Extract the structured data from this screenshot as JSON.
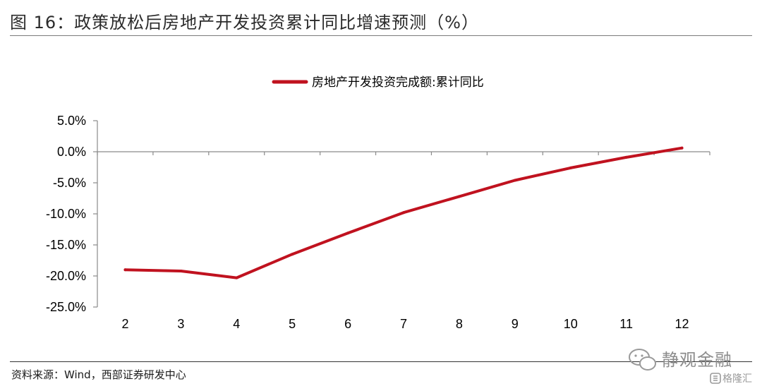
{
  "header": {
    "title": "图 16：政策放松后房地产开发投资累计同比增速预测（%）"
  },
  "footer": {
    "source": "资料来源：Wind，西部证券研发中心"
  },
  "watermark": {
    "main": "静观金融",
    "sub": "格隆汇"
  },
  "chart_data": {
    "type": "line",
    "categories": [
      "2",
      "3",
      "4",
      "5",
      "6",
      "7",
      "8",
      "9",
      "10",
      "11",
      "12"
    ],
    "series": [
      {
        "name": "房地产开发投资完成额:累计同比",
        "values": [
          -19.0,
          -19.2,
          -20.3,
          -16.5,
          -13.1,
          -9.8,
          -7.2,
          -4.6,
          -2.6,
          -0.9,
          0.6
        ],
        "color": "#c0121f"
      }
    ],
    "y_tick_labels": [
      "5.0%",
      "0.0%",
      "-5.0%",
      "-10.0%",
      "-15.0%",
      "-20.0%",
      "-25.0%"
    ],
    "y_ticks": [
      5,
      0,
      -5,
      -10,
      -15,
      -20,
      -25
    ],
    "ylim": [
      -25,
      5
    ],
    "grid": false,
    "legend_position": "top-center",
    "title": "",
    "xlabel": "",
    "ylabel": ""
  }
}
